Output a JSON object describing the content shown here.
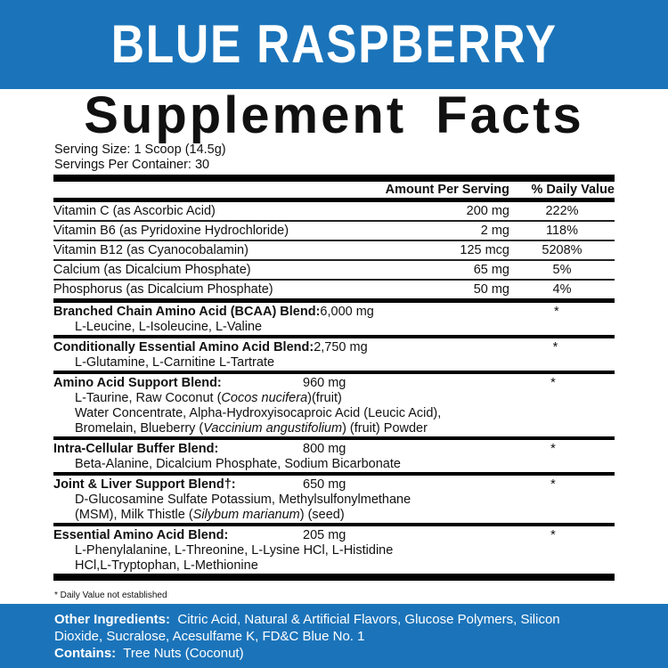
{
  "brand_colors": {
    "banner": "#1b74ba",
    "text": "#111111"
  },
  "flavor": "BLUE RASPBERRY",
  "title": "Supplement Facts",
  "serving_size": "Serving Size: 1 Scoop (14.5g)",
  "servings_per_container": "Servings Per Container: 30",
  "columns": {
    "amount": "Amount Per Serving",
    "dv": "% Daily Value"
  },
  "vitamins": [
    {
      "name": "Vitamin C (as Ascorbic Acid)",
      "amount": "200 mg",
      "dv": "222%"
    },
    {
      "name": "Vitamin B6 (as Pyridoxine Hydrochloride)",
      "amount": "2 mg",
      "dv": "118%"
    },
    {
      "name": "Vitamin B12 (as Cyanocobalamin)",
      "amount": "125 mcg",
      "dv": "5208%"
    },
    {
      "name": "Calcium (as Dicalcium Phosphate)",
      "amount": "65 mg",
      "dv": "5%"
    },
    {
      "name": "Phosphorus (as Dicalcium Phosphate)",
      "amount": "50 mg",
      "dv": "4%"
    }
  ],
  "blends": [
    {
      "name": "Branched Chain Amino Acid (BCAA) Blend:",
      "amount": "6,000 mg",
      "dv": "*",
      "lines": [
        [
          {
            "t": "L-Leucine, L-Isoleucine, L-Valine"
          }
        ]
      ]
    },
    {
      "name": "Conditionally Essential Amino Acid Blend:",
      "amount": "2,750 mg",
      "dv": "*",
      "lines": [
        [
          {
            "t": "L-Glutamine, L-Carnitine L-Tartrate"
          }
        ]
      ]
    },
    {
      "name": "Amino Acid Support Blend:",
      "amount": "960 mg",
      "dv": "*",
      "lines": [
        [
          {
            "t": "L-Taurine, Raw Coconut ("
          },
          {
            "t": "Cocos nucifera",
            "i": true
          },
          {
            "t": ")(fruit)"
          }
        ],
        [
          {
            "t": "Water Concentrate, Alpha-Hydroxyisocaproic Acid (Leucic Acid),"
          }
        ],
        [
          {
            "t": "Bromelain, Blueberry ("
          },
          {
            "t": "Vaccinium angustifolium",
            "i": true
          },
          {
            "t": ") (fruit) Powder"
          }
        ]
      ]
    },
    {
      "name": "Intra-Cellular Buffer Blend:",
      "amount": "800 mg",
      "dv": "*",
      "lines": [
        [
          {
            "t": "Beta-Alanine, Dicalcium Phosphate, Sodium Bicarbonate"
          }
        ]
      ]
    },
    {
      "name": "Joint & Liver Support Blend†:",
      "amount": "650 mg",
      "dv": "*",
      "lines": [
        [
          {
            "t": "D-Glucosamine Sulfate Potassium, Methylsulfonylmethane"
          }
        ],
        [
          {
            "t": "(MSM), Milk Thistle ("
          },
          {
            "t": "Silybum marianum",
            "i": true
          },
          {
            "t": ") (seed)"
          }
        ]
      ]
    },
    {
      "name": "Essential Amino Acid Blend:",
      "amount": "205 mg",
      "dv": "*",
      "lines": [
        [
          {
            "t": "L-Phenylalanine, L-Threonine, L-Lysine HCl, L-Histidine"
          }
        ],
        [
          {
            "t": "HCl,L-Tryptophan, L-Methionine"
          }
        ]
      ]
    }
  ],
  "footnote": "* Daily Value not established",
  "other": {
    "label": "Other Ingredients:",
    "line1": "Citric Acid, Natural & Artificial Flavors, Glucose Polymers, Silicon",
    "line2": "Dioxide, Sucralose, Acesulfame K, FD&C Blue No. 1"
  },
  "contains": {
    "label": "Contains:",
    "value": "Tree Nuts (Coconut)"
  }
}
